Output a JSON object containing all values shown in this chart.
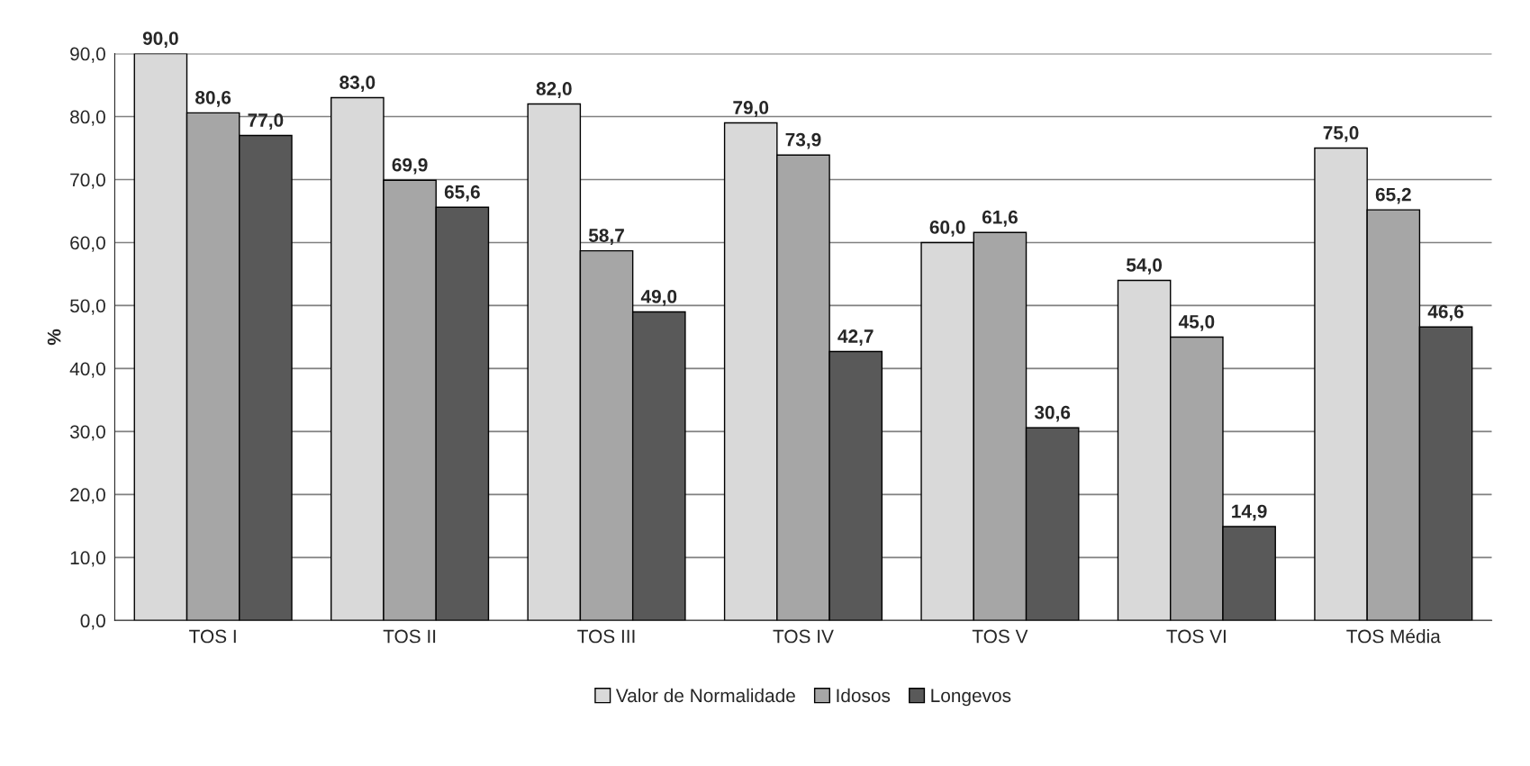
{
  "chart_data": {
    "type": "bar",
    "ylabel": "%",
    "categories": [
      "TOS I",
      "TOS II",
      "TOS III",
      "TOS IV",
      "TOS V",
      "TOS VI",
      "TOS Média"
    ],
    "series": [
      {
        "name": "Valor de Normalidade",
        "color": "#d9d9d9",
        "values": [
          90.0,
          83.0,
          82.0,
          79.0,
          60.0,
          54.0,
          75.0
        ],
        "value_labels": [
          "90,0",
          "83,0",
          "82,0",
          "79,0",
          "60,0",
          "54,0",
          "75,0"
        ]
      },
      {
        "name": "Idosos",
        "color": "#a6a6a6",
        "values": [
          80.6,
          69.9,
          58.7,
          73.9,
          61.6,
          45.0,
          65.2
        ],
        "value_labels": [
          "80,6",
          "69,9",
          "58,7",
          "73,9",
          "61,6",
          "45,0",
          "65,2"
        ]
      },
      {
        "name": "Longevos",
        "color": "#595959",
        "values": [
          77.0,
          65.6,
          49.0,
          42.7,
          30.6,
          14.9,
          46.6
        ],
        "value_labels": [
          "77,0",
          "65,6",
          "49,0",
          "42,7",
          "30,6",
          "14,9",
          "46,6"
        ]
      }
    ],
    "ylim": [
      0,
      90
    ],
    "yticks": [
      {
        "value": 0,
        "label": "0,0"
      },
      {
        "value": 10,
        "label": "10,0"
      },
      {
        "value": 20,
        "label": "20,0"
      },
      {
        "value": 30,
        "label": "30,0"
      },
      {
        "value": 40,
        "label": "40,0"
      },
      {
        "value": 50,
        "label": "50,0"
      },
      {
        "value": 60,
        "label": "60,0"
      },
      {
        "value": 70,
        "label": "70,0"
      },
      {
        "value": 80,
        "label": "80,0"
      },
      {
        "value": 90,
        "label": "90,0"
      }
    ],
    "grid": "y",
    "legend": "bottom"
  }
}
